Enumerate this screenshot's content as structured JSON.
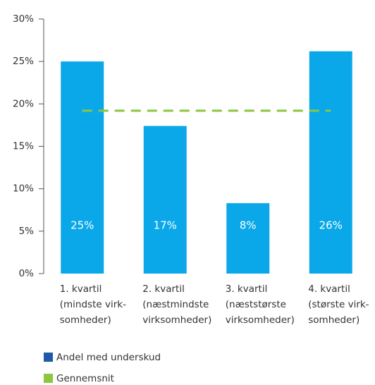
{
  "chart_data": {
    "type": "bar",
    "categories": [
      [
        "1. kvartil",
        "(mindste virk-",
        "somheder)"
      ],
      [
        "2. kvartil",
        "(næstmindste",
        "virksomheder)"
      ],
      [
        "3. kvartil",
        "(næststørste",
        "virksomheder)"
      ],
      [
        "4. kvartil",
        "(største virk-",
        "somheder)"
      ]
    ],
    "series": [
      {
        "name": "Andel med underskud",
        "color": "#1d5aa8",
        "bar_color": "#0aa8e9",
        "values": [
          25,
          17.4,
          8.3,
          26.2
        ],
        "value_labels": [
          "25%",
          "17%",
          "8%",
          "26%"
        ]
      }
    ],
    "average": {
      "name": "Gennemsnit",
      "color": "#8dc63f",
      "value": 19.2
    },
    "ylim": [
      0,
      30
    ],
    "yticks": [
      {
        "value": 0,
        "label": "0%"
      },
      {
        "value": 5,
        "label": "5%"
      },
      {
        "value": 10,
        "label": "10%"
      },
      {
        "value": 15,
        "label": "15%"
      },
      {
        "value": 20,
        "label": "20%"
      },
      {
        "value": 25,
        "label": "25%"
      },
      {
        "value": 30,
        "label": "30%"
      }
    ]
  }
}
